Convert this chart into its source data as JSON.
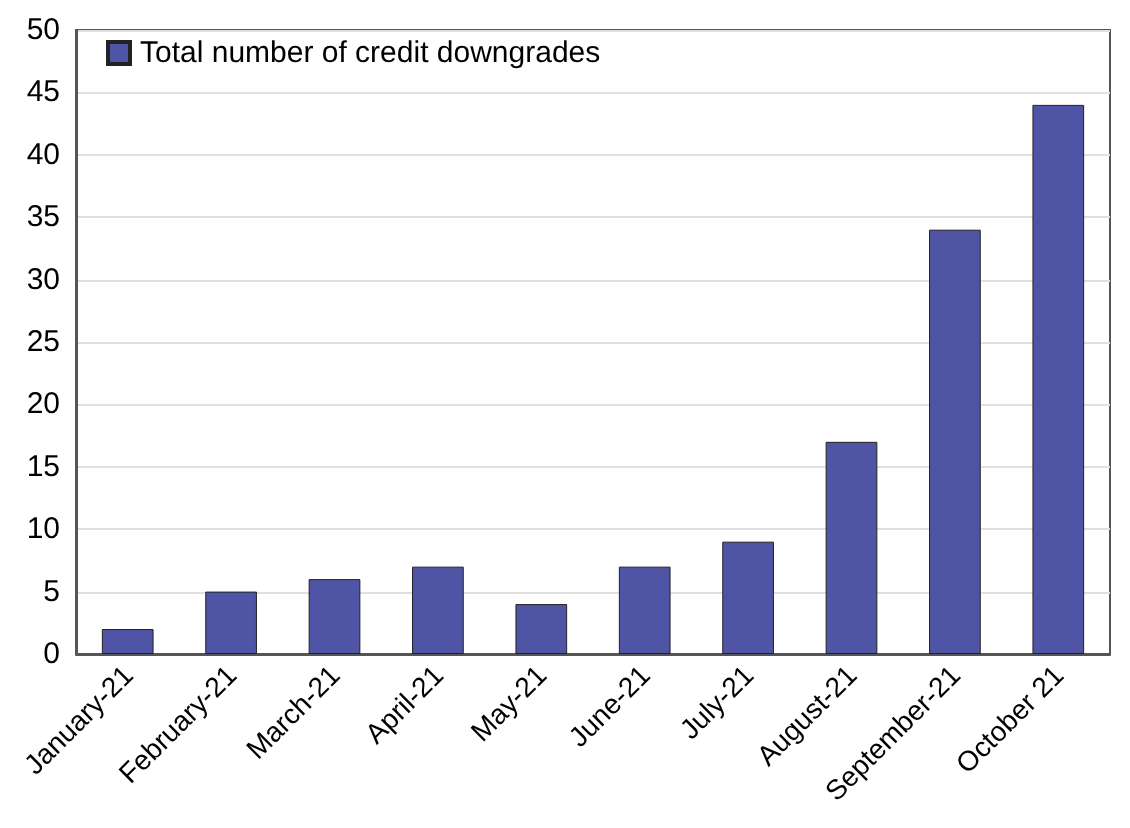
{
  "chart_data": {
    "type": "bar",
    "categories": [
      "January-21",
      "February-21",
      "March-21",
      "April-21",
      "May-21",
      "June-21",
      "July-21",
      "August-21",
      "September-21",
      "October 21"
    ],
    "series": [
      {
        "name": "Total number of credit downgrades",
        "color": "#4f54a4",
        "values": [
          2,
          5,
          6,
          7,
          4,
          7,
          9,
          17,
          34,
          44
        ]
      }
    ],
    "ylim": [
      0,
      50
    ],
    "yticks": [
      0,
      5,
      10,
      15,
      20,
      25,
      30,
      35,
      40,
      45,
      50
    ],
    "grid": "y",
    "legend": "top left"
  }
}
